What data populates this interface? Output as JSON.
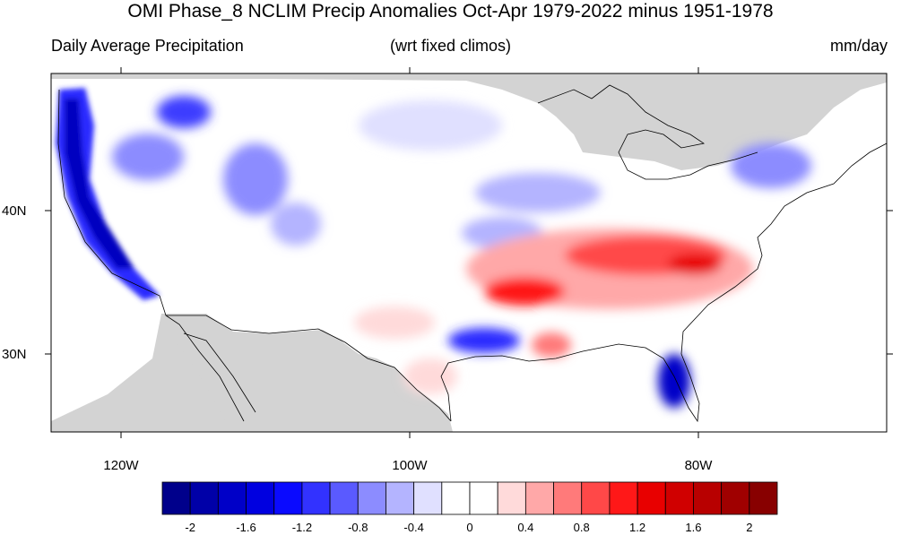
{
  "title": "OMI Phase_8 NCLIM Precip Anomalies Oct-Apr 1979-2022 minus 1951-1978",
  "subtitle_left": "Daily Average Precipitation",
  "subtitle_center": "(wrt fixed climos)",
  "subtitle_right": "mm/day",
  "lat_labels": [
    "40N",
    "30N"
  ],
  "lon_labels": [
    "120W",
    "100W",
    "80W"
  ],
  "colorbar": {
    "colors": [
      "#00008b",
      "#0000a8",
      "#0000c8",
      "#0000e0",
      "#0a0aff",
      "#3232ff",
      "#5a5aff",
      "#8c8cff",
      "#b4b4ff",
      "#e0e0ff",
      "#ffffff",
      "#ffffff",
      "#ffdada",
      "#ffa8a8",
      "#ff7a7a",
      "#ff4848",
      "#ff1818",
      "#e80000",
      "#d00000",
      "#b80000",
      "#a00000",
      "#880000"
    ],
    "labels": [
      "-2",
      "-1.6",
      "-1.2",
      "-0.8",
      "-0.4",
      "0",
      "0.4",
      "0.8",
      "1.2",
      "1.6",
      "2"
    ]
  },
  "map_colors": {
    "land_mask": "#d3d3d3",
    "ocean": "#ffffff",
    "outline": "#000000"
  }
}
